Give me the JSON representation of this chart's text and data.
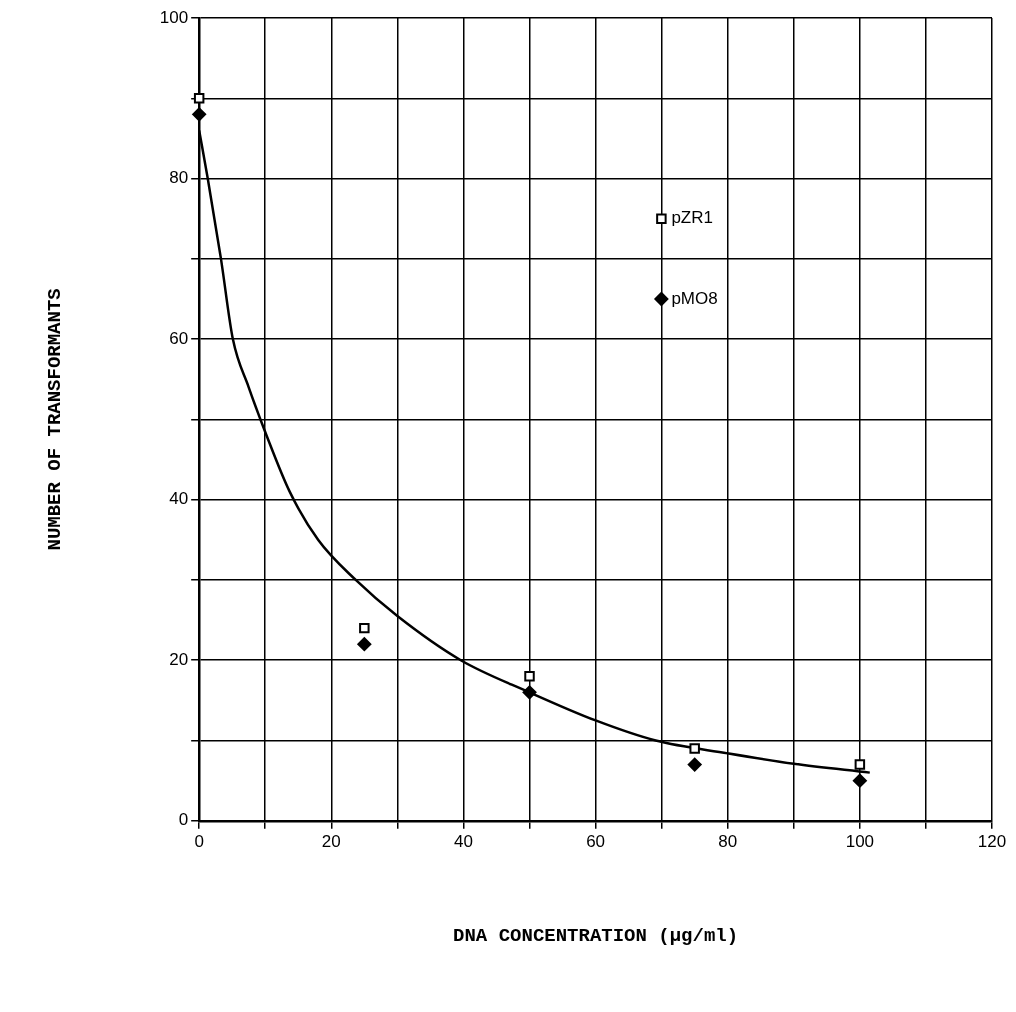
{
  "chart_data": {
    "type": "scatter",
    "xlabel": "DNA CONCENTRATION (µg/ml)",
    "ylabel": "NUMBER OF TRANSFORMANTS",
    "xlim": [
      0,
      120
    ],
    "xticks": [
      0,
      {
        "value": 10,
        "label": null
      },
      20,
      {
        "value": 30,
        "label": null
      },
      40,
      {
        "value": 50,
        "label": null
      },
      60,
      {
        "value": 70,
        "label": null
      },
      80,
      {
        "value": 90,
        "label": null
      },
      100,
      {
        "value": 110,
        "label": null
      },
      120
    ],
    "ylim": [
      0,
      100
    ],
    "yticks": [
      0,
      {
        "value": 10,
        "label": null
      },
      20,
      {
        "value": 30,
        "label": null
      },
      40,
      {
        "value": 50,
        "label": null
      },
      60,
      {
        "value": 70,
        "label": null
      },
      80,
      {
        "value": 90,
        "label": null
      },
      100
    ],
    "grid": true,
    "legend": "top right",
    "series": [
      {
        "name": "pZR1",
        "color": "#000000",
        "marker": "square",
        "x": [
          0,
          25,
          50,
          75,
          100
        ],
        "values": [
          90,
          24,
          18,
          9,
          7
        ]
      },
      {
        "name": "pMO8",
        "color": "#000000",
        "marker": "diamond",
        "x": [
          0,
          25,
          50,
          75,
          100
        ],
        "values": [
          88,
          22,
          16,
          7,
          5
        ]
      },
      {
        "type": "line",
        "color": "#000000",
        "marker": "none",
        "x": [
          0,
          1.3,
          3.3,
          5.1,
          7.5,
          10.2,
          13.7,
          18,
          23.7,
          30,
          39.6,
          50,
          60,
          69.1,
          80,
          90,
          101.5
        ],
        "values": [
          86,
          80,
          70,
          60,
          54,
          48,
          41,
          35,
          30,
          25.5,
          20,
          16,
          12.5,
          10,
          8.4,
          7.1,
          6
        ]
      }
    ]
  }
}
